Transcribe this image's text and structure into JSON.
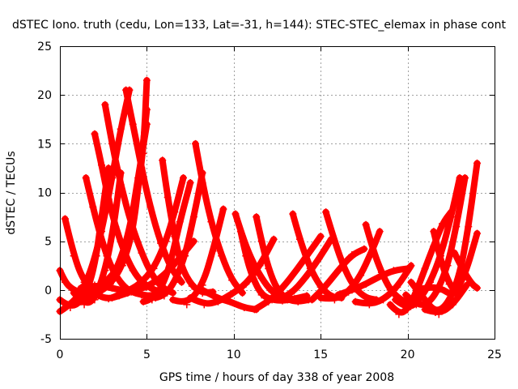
{
  "chart_data": {
    "type": "scatter",
    "title": "dSTEC Iono. truth (cedu, Lon=133, Lat=-31, h=144): STEC-STEC_elemax in phase cont",
    "xlabel": "GPS time / hours of day 338 of year 2008",
    "ylabel": "dSTEC  / TECUs",
    "xlim": [
      0,
      25
    ],
    "ylim": [
      -5,
      25
    ],
    "xticks": [
      "0",
      "5",
      "10",
      "15",
      "20",
      "25"
    ],
    "yticks": [
      "-5",
      "0",
      "5",
      "10",
      "15",
      "20",
      "25"
    ],
    "grid": true,
    "marker": "plus",
    "color": "#ff0000",
    "series": [
      {
        "x": [
          0.0,
          0.3,
          0.7,
          1.2,
          1.8,
          2.4,
          3.0,
          3.4
        ],
        "y": [
          2.0,
          0.8,
          0.1,
          -0.3,
          -0.1,
          0.5,
          1.5,
          2.5
        ]
      },
      {
        "x": [
          0.3,
          0.8,
          1.4,
          2.2,
          2.8,
          3.4,
          3.9
        ],
        "y": [
          7.3,
          3.5,
          0.8,
          -0.6,
          -0.9,
          -0.6,
          -0.3
        ]
      },
      {
        "x": [
          0.0,
          0.6,
          1.2,
          1.8,
          2.4,
          3.0,
          3.5,
          4.0
        ],
        "y": [
          -2.2,
          -1.5,
          -0.3,
          2.0,
          6.0,
          11.5,
          16.5,
          20.5
        ]
      },
      {
        "x": [
          0.0,
          0.6,
          1.2,
          1.7,
          2.1,
          2.4,
          2.8
        ],
        "y": [
          -1.0,
          -1.8,
          -1.2,
          0.5,
          3.5,
          7.5,
          12.5
        ]
      },
      {
        "x": [
          0.8,
          1.4,
          2.0,
          2.6,
          3.1,
          3.5
        ],
        "y": [
          -0.3,
          -1.5,
          -1.0,
          2.0,
          6.5,
          12.0
        ]
      },
      {
        "x": [
          1.6,
          2.2,
          2.9,
          3.6,
          4.2,
          4.6,
          5.0
        ],
        "y": [
          -0.8,
          -0.3,
          0.6,
          2.5,
          6.0,
          12.0,
          18.5
        ]
      },
      {
        "x": [
          2.0,
          2.6,
          3.3,
          4.0,
          4.5,
          5.0
        ],
        "y": [
          -0.6,
          0.3,
          2.2,
          6.0,
          11.5,
          17.0
        ]
      },
      {
        "x": [
          2.2,
          2.8,
          3.5,
          4.2,
          4.8,
          5.0
        ],
        "y": [
          -0.2,
          0.6,
          2.6,
          7.0,
          14.0,
          21.5
        ]
      },
      {
        "x": [
          1.5,
          1.9,
          2.3,
          2.7,
          3.1,
          3.6,
          4.1,
          4.7,
          5.3,
          5.8
        ],
        "y": [
          11.5,
          8.5,
          5.8,
          3.5,
          1.8,
          0.5,
          -0.2,
          -0.5,
          -0.6,
          -0.2
        ]
      },
      {
        "x": [
          2.0,
          2.4,
          2.8,
          3.2,
          3.7,
          4.2,
          4.7,
          5.3,
          5.8
        ],
        "y": [
          16.0,
          12.8,
          9.3,
          6.5,
          3.9,
          2.0,
          0.8,
          0.1,
          -0.2
        ]
      },
      {
        "x": [
          2.6,
          3.0,
          3.5,
          4.1,
          4.7,
          5.3,
          5.9,
          6.5
        ],
        "y": [
          19.0,
          15.0,
          10.8,
          6.8,
          3.8,
          1.5,
          0.2,
          -0.3
        ]
      },
      {
        "x": [
          3.8,
          4.2,
          4.7,
          5.2,
          5.8,
          6.4,
          7.0
        ],
        "y": [
          20.5,
          17.0,
          12.5,
          8.5,
          4.8,
          2.2,
          0.8
        ]
      },
      {
        "x": [
          1.2,
          2.0,
          3.0,
          4.0,
          5.0,
          6.0,
          7.0,
          7.7
        ],
        "y": [
          0.2,
          0.5,
          0.2,
          -0.2,
          0.3,
          1.5,
          3.5,
          5.0
        ]
      },
      {
        "x": [
          3.0,
          3.8,
          4.6,
          5.4,
          6.1,
          6.6,
          7.1
        ],
        "y": [
          -0.8,
          -0.2,
          0.6,
          2.2,
          5.0,
          8.0,
          11.5
        ]
      },
      {
        "x": [
          5.9,
          6.2,
          6.6,
          7.0,
          7.6,
          8.2,
          8.8
        ],
        "y": [
          13.3,
          9.5,
          5.5,
          2.3,
          0.4,
          -0.3,
          -0.2
        ]
      },
      {
        "x": [
          4.8,
          5.3,
          5.9,
          6.4,
          6.9,
          7.5
        ],
        "y": [
          -1.2,
          -1.0,
          0.4,
          3.0,
          7.0,
          11.0
        ]
      },
      {
        "x": [
          5.5,
          6.0,
          6.6,
          7.2,
          7.7,
          8.2
        ],
        "y": [
          -0.8,
          -0.6,
          0.8,
          3.5,
          7.5,
          12.0
        ]
      },
      {
        "x": [
          7.8,
          8.2,
          8.7,
          9.3,
          9.9,
          10.5
        ],
        "y": [
          15.0,
          11.0,
          7.0,
          3.5,
          1.0,
          -0.3
        ]
      },
      {
        "x": [
          6.5,
          7.3,
          8.2,
          8.8,
          9.4
        ],
        "y": [
          -1.0,
          -1.5,
          0.5,
          4.0,
          8.3
        ]
      },
      {
        "x": [
          7.5,
          8.3,
          9.1,
          9.9,
          10.7,
          11.5,
          12.3
        ],
        "y": [
          -0.8,
          -1.5,
          -1.2,
          -0.4,
          0.6,
          2.5,
          5.2
        ]
      },
      {
        "x": [
          11.3,
          11.6,
          12.0,
          12.5,
          13.1,
          13.7,
          14.3
        ],
        "y": [
          7.5,
          5.0,
          2.2,
          0.0,
          -1.0,
          -1.2,
          -1.0
        ]
      },
      {
        "x": [
          10.1,
          10.5,
          11.0,
          11.6,
          12.2,
          12.8,
          13.4,
          14.0
        ],
        "y": [
          7.8,
          5.5,
          3.2,
          1.2,
          -0.2,
          -0.8,
          -1.0,
          -0.8
        ]
      },
      {
        "x": [
          10.4,
          10.7,
          11.1,
          11.6,
          12.2,
          12.8,
          13.5,
          14.2
        ],
        "y": [
          6.0,
          3.5,
          1.2,
          -0.5,
          -1.0,
          -1.1,
          -0.9,
          -0.6
        ]
      },
      {
        "x": [
          8.2,
          9.0,
          9.8,
          10.6,
          11.3
        ],
        "y": [
          0.0,
          -0.8,
          -1.2,
          -1.8,
          -2.0
        ]
      },
      {
        "x": [
          11.2,
          12.0,
          12.8,
          13.6,
          14.4,
          15.0
        ],
        "y": [
          -2.0,
          -1.2,
          0.2,
          2.0,
          4.0,
          5.5
        ]
      },
      {
        "x": [
          13.4,
          13.8,
          14.4,
          15.0,
          15.6,
          16.2
        ],
        "y": [
          7.8,
          5.2,
          2.2,
          0.3,
          -0.7,
          -0.8
        ]
      },
      {
        "x": [
          12.6,
          13.3,
          14.1,
          14.9,
          15.6
        ],
        "y": [
          -1.0,
          -0.4,
          1.2,
          3.2,
          5.2
        ]
      },
      {
        "x": [
          15.3,
          15.8,
          16.4,
          17.0,
          17.6,
          18.2
        ],
        "y": [
          8.0,
          5.0,
          2.0,
          0.1,
          -0.8,
          -1.0
        ]
      },
      {
        "x": [
          14.5,
          15.2,
          16.0,
          16.8,
          17.5
        ],
        "y": [
          -1.0,
          0.2,
          2.0,
          3.6,
          4.2
        ]
      },
      {
        "x": [
          15.0,
          15.8,
          16.6,
          17.3,
          17.9,
          18.4
        ],
        "y": [
          -0.8,
          -1.0,
          -0.2,
          1.5,
          3.8,
          6.0
        ]
      },
      {
        "x": [
          17.6,
          18.0,
          18.5,
          19.0,
          19.6,
          20.2
        ],
        "y": [
          6.7,
          4.2,
          1.8,
          0.0,
          -1.0,
          -1.5
        ]
      },
      {
        "x": [
          16.0,
          16.8,
          17.6,
          18.4,
          19.2,
          20.0
        ],
        "y": [
          -0.5,
          0.0,
          0.6,
          1.4,
          2.0,
          2.2
        ]
      },
      {
        "x": [
          17.0,
          17.8,
          18.6,
          19.4,
          20.2
        ],
        "y": [
          -1.2,
          -1.5,
          -1.0,
          0.3,
          2.5
        ]
      },
      {
        "x": [
          19.0,
          19.5,
          20.0,
          20.5,
          21.0,
          21.5,
          22.0,
          22.5
        ],
        "y": [
          -1.5,
          -2.5,
          -2.0,
          -0.2,
          2.2,
          4.5,
          6.8,
          8.0
        ]
      },
      {
        "x": [
          19.3,
          20.0,
          20.7,
          21.3,
          21.9,
          22.5,
          23.0
        ],
        "y": [
          -1.0,
          -2.0,
          -1.0,
          0.8,
          3.5,
          7.5,
          11.5
        ]
      },
      {
        "x": [
          19.9,
          20.5,
          21.1,
          21.7,
          22.3,
          22.8,
          23.3
        ],
        "y": [
          -0.5,
          -1.5,
          -1.5,
          -0.2,
          2.5,
          6.5,
          11.5
        ]
      },
      {
        "x": [
          20.2,
          20.9,
          21.6,
          22.3,
          23.0,
          23.5,
          24.0
        ],
        "y": [
          0.8,
          -0.8,
          -2.3,
          -1.5,
          1.5,
          6.5,
          13.0
        ]
      },
      {
        "x": [
          20.5,
          21.2,
          21.9,
          22.6,
          23.3,
          24.0
        ],
        "y": [
          0.0,
          0.3,
          0.2,
          -0.6,
          1.5,
          5.8
        ]
      },
      {
        "x": [
          21.5,
          21.9,
          22.4,
          22.9
        ],
        "y": [
          6.0,
          3.0,
          0.6,
          -0.5
        ]
      },
      {
        "x": [
          21.0,
          21.8,
          22.6,
          23.4
        ],
        "y": [
          -2.0,
          -2.5,
          -1.5,
          0.5
        ]
      },
      {
        "x": [
          22.7,
          23.2,
          23.7,
          24.0
        ],
        "y": [
          3.8,
          2.0,
          0.6,
          0.2
        ]
      }
    ]
  }
}
